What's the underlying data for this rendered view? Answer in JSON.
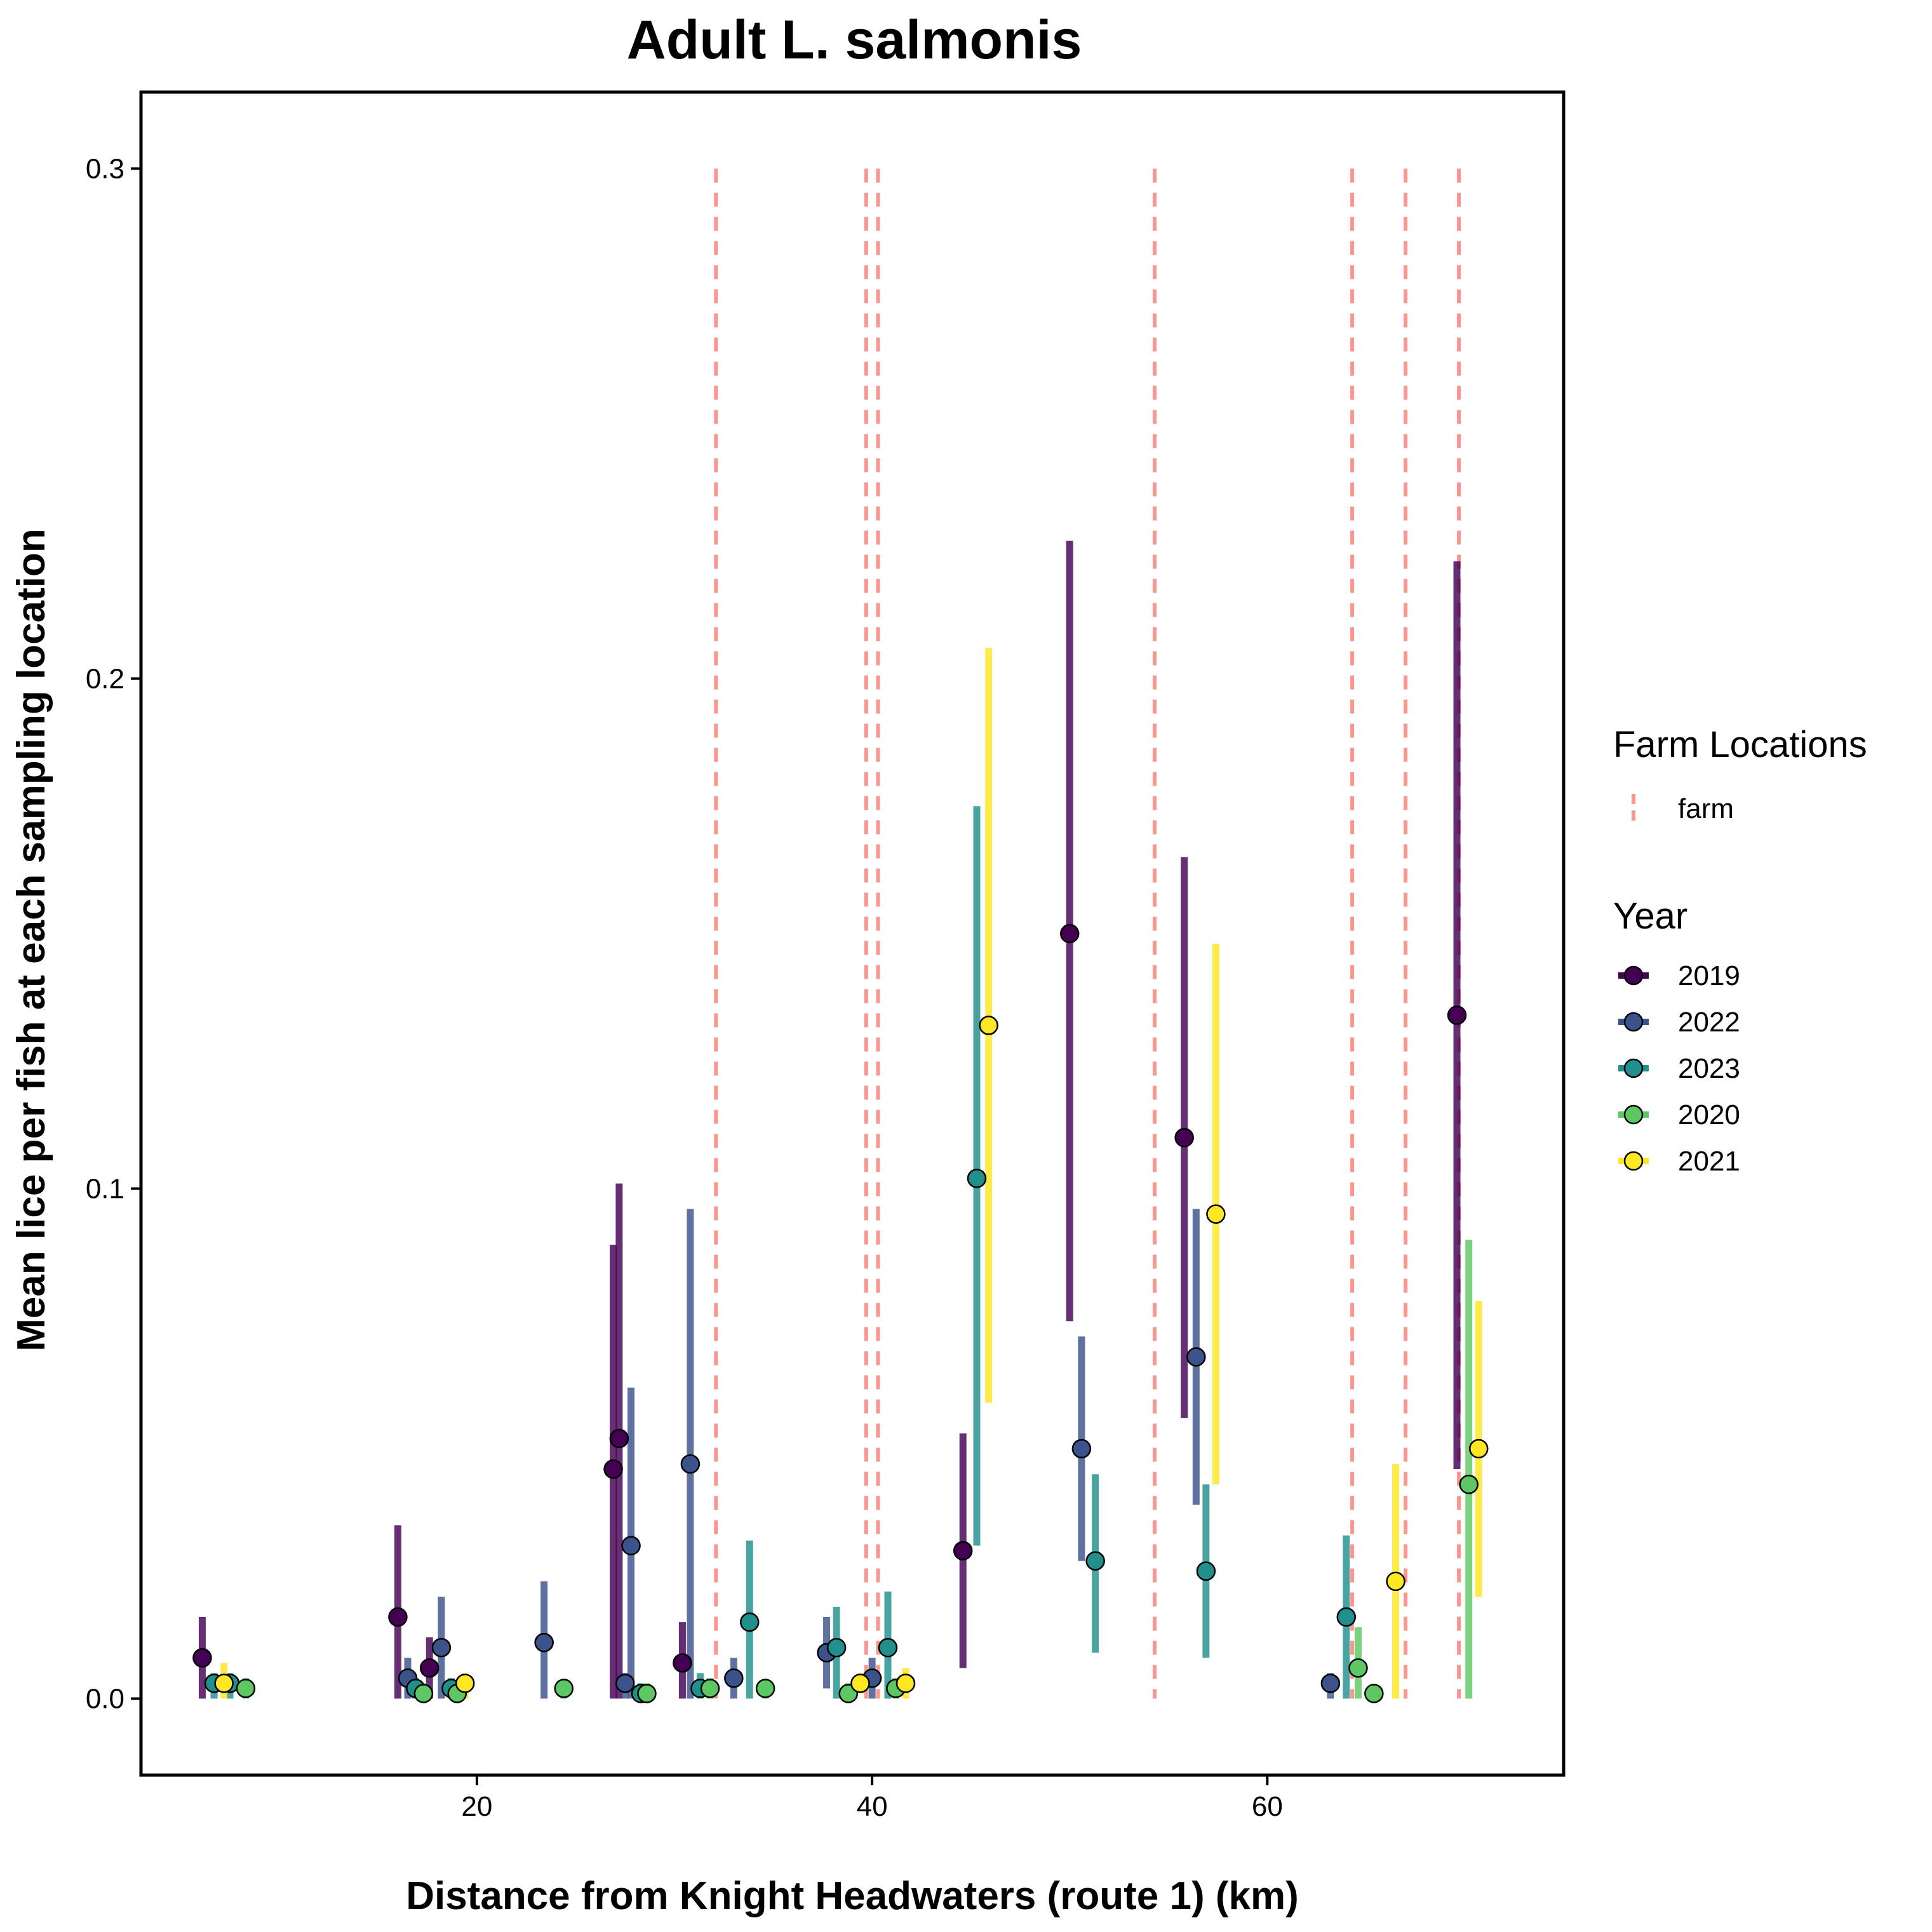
{
  "chart_data": {
    "type": "scatter",
    "title": "Adult L. salmonis",
    "xlabel": "Distance from Knight Headwaters (route 1) (km)",
    "ylabel": "Mean lice per fish at each sampling location",
    "xlim": [
      3,
      75
    ],
    "ylim": [
      -0.015,
      0.315
    ],
    "x_ticks": [
      20,
      40,
      60
    ],
    "y_ticks": [
      0.0,
      0.1,
      0.2,
      0.3
    ],
    "y_tick_labels": [
      "0.0",
      "0.1",
      "0.2",
      "0.3"
    ],
    "grid": false,
    "legend_position": "right",
    "farm_legend": {
      "title": "Farm Locations",
      "label": "farm",
      "color": "#F8968F"
    },
    "year_legend_title": "Year",
    "farm_locations": [
      32.1,
      39.7,
      40.3,
      54.3,
      64.3,
      67.0,
      69.7
    ],
    "series": [
      {
        "name": "2019",
        "color": "#440154",
        "points": [
          {
            "x": 6.1,
            "y": 0.008,
            "low": 0.0,
            "high": 0.016
          },
          {
            "x": 16.0,
            "y": 0.016,
            "low": 0.0,
            "high": 0.034
          },
          {
            "x": 17.6,
            "y": 0.006,
            "low": 0.0,
            "high": 0.012
          },
          {
            "x": 26.9,
            "y": 0.045,
            "low": 0.0,
            "high": 0.089
          },
          {
            "x": 27.2,
            "y": 0.051,
            "low": 0.0,
            "high": 0.101
          },
          {
            "x": 30.4,
            "y": 0.007,
            "low": 0.0,
            "high": 0.015
          },
          {
            "x": 44.6,
            "y": 0.029,
            "low": 0.006,
            "high": 0.052
          },
          {
            "x": 50.0,
            "y": 0.15,
            "low": 0.074,
            "high": 0.227
          },
          {
            "x": 55.8,
            "y": 0.11,
            "low": 0.055,
            "high": 0.165
          },
          {
            "x": 69.6,
            "y": 0.134,
            "low": 0.045,
            "high": 0.223
          }
        ]
      },
      {
        "name": "2022",
        "color": "#3B528B",
        "points": [
          {
            "x": 16.5,
            "y": 0.004,
            "low": 0.0,
            "high": 0.008
          },
          {
            "x": 18.2,
            "y": 0.01,
            "low": 0.0,
            "high": 0.02
          },
          {
            "x": 23.4,
            "y": 0.011,
            "low": 0.0,
            "high": 0.023
          },
          {
            "x": 27.5,
            "y": 0.003,
            "low": 0.0,
            "high": 0.005
          },
          {
            "x": 27.8,
            "y": 0.03,
            "low": 0.0,
            "high": 0.061
          },
          {
            "x": 30.8,
            "y": 0.046,
            "low": 0.0,
            "high": 0.096
          },
          {
            "x": 33.0,
            "y": 0.004,
            "low": 0.0,
            "high": 0.008
          },
          {
            "x": 37.7,
            "y": 0.009,
            "low": 0.002,
            "high": 0.016
          },
          {
            "x": 40.0,
            "y": 0.004,
            "low": 0.0,
            "high": 0.008
          },
          {
            "x": 50.6,
            "y": 0.049,
            "low": 0.027,
            "high": 0.071
          },
          {
            "x": 56.4,
            "y": 0.067,
            "low": 0.038,
            "high": 0.096
          },
          {
            "x": 63.2,
            "y": 0.003,
            "low": 0.0,
            "high": 0.005
          }
        ]
      },
      {
        "name": "2023",
        "color": "#21908C",
        "points": [
          {
            "x": 6.7,
            "y": 0.003,
            "low": 0.0,
            "high": 0.005
          },
          {
            "x": 7.5,
            "y": 0.003,
            "low": 0.0,
            "high": 0.005
          },
          {
            "x": 16.9,
            "y": 0.002,
            "low": 0.0,
            "high": 0.004
          },
          {
            "x": 18.7,
            "y": 0.002,
            "low": 0.0,
            "high": 0.004
          },
          {
            "x": 28.3,
            "y": 0.001,
            "low": 0.0,
            "high": 0.003
          },
          {
            "x": 31.3,
            "y": 0.002,
            "low": 0.0,
            "high": 0.005
          },
          {
            "x": 33.8,
            "y": 0.015,
            "low": 0.0,
            "high": 0.031
          },
          {
            "x": 38.2,
            "y": 0.01,
            "low": 0.0,
            "high": 0.018
          },
          {
            "x": 40.8,
            "y": 0.01,
            "low": 0.0,
            "high": 0.021
          },
          {
            "x": 45.3,
            "y": 0.102,
            "low": 0.03,
            "high": 0.175
          },
          {
            "x": 51.3,
            "y": 0.027,
            "low": 0.009,
            "high": 0.044
          },
          {
            "x": 56.9,
            "y": 0.025,
            "low": 0.008,
            "high": 0.042
          },
          {
            "x": 64.0,
            "y": 0.016,
            "low": 0.0,
            "high": 0.032
          }
        ]
      },
      {
        "name": "2020",
        "color": "#5DC863",
        "points": [
          {
            "x": 8.3,
            "y": 0.002,
            "low": 0.0,
            "high": 0.004
          },
          {
            "x": 17.3,
            "y": 0.001,
            "low": 0.0,
            "high": 0.003
          },
          {
            "x": 19.0,
            "y": 0.001,
            "low": 0.0,
            "high": 0.003
          },
          {
            "x": 24.4,
            "y": 0.002,
            "low": 0.0,
            "high": 0.003
          },
          {
            "x": 28.6,
            "y": 0.001,
            "low": 0.0,
            "high": 0.003
          },
          {
            "x": 31.8,
            "y": 0.002,
            "low": 0.0,
            "high": 0.004
          },
          {
            "x": 34.6,
            "y": 0.002,
            "low": 0.0,
            "high": 0.003
          },
          {
            "x": 38.8,
            "y": 0.001,
            "low": 0.0,
            "high": 0.003
          },
          {
            "x": 41.2,
            "y": 0.002,
            "low": 0.0,
            "high": 0.004
          },
          {
            "x": 64.6,
            "y": 0.006,
            "low": 0.0,
            "high": 0.014
          },
          {
            "x": 65.4,
            "y": 0.001,
            "low": 0.0,
            "high": 0.002
          },
          {
            "x": 70.2,
            "y": 0.042,
            "low": 0.0,
            "high": 0.09
          }
        ]
      },
      {
        "name": "2021",
        "color": "#FDE725",
        "points": [
          {
            "x": 7.2,
            "y": 0.003,
            "low": 0.0,
            "high": 0.007
          },
          {
            "x": 19.4,
            "y": 0.003,
            "low": 0.0,
            "high": 0.005
          },
          {
            "x": 39.4,
            "y": 0.003,
            "low": 0.001,
            "high": 0.005
          },
          {
            "x": 41.7,
            "y": 0.003,
            "low": 0.0,
            "high": 0.006
          },
          {
            "x": 45.9,
            "y": 0.132,
            "low": 0.058,
            "high": 0.206
          },
          {
            "x": 57.4,
            "y": 0.095,
            "low": 0.042,
            "high": 0.148
          },
          {
            "x": 66.5,
            "y": 0.023,
            "low": 0.0,
            "high": 0.046
          },
          {
            "x": 70.7,
            "y": 0.049,
            "low": 0.02,
            "high": 0.078
          }
        ]
      }
    ]
  }
}
